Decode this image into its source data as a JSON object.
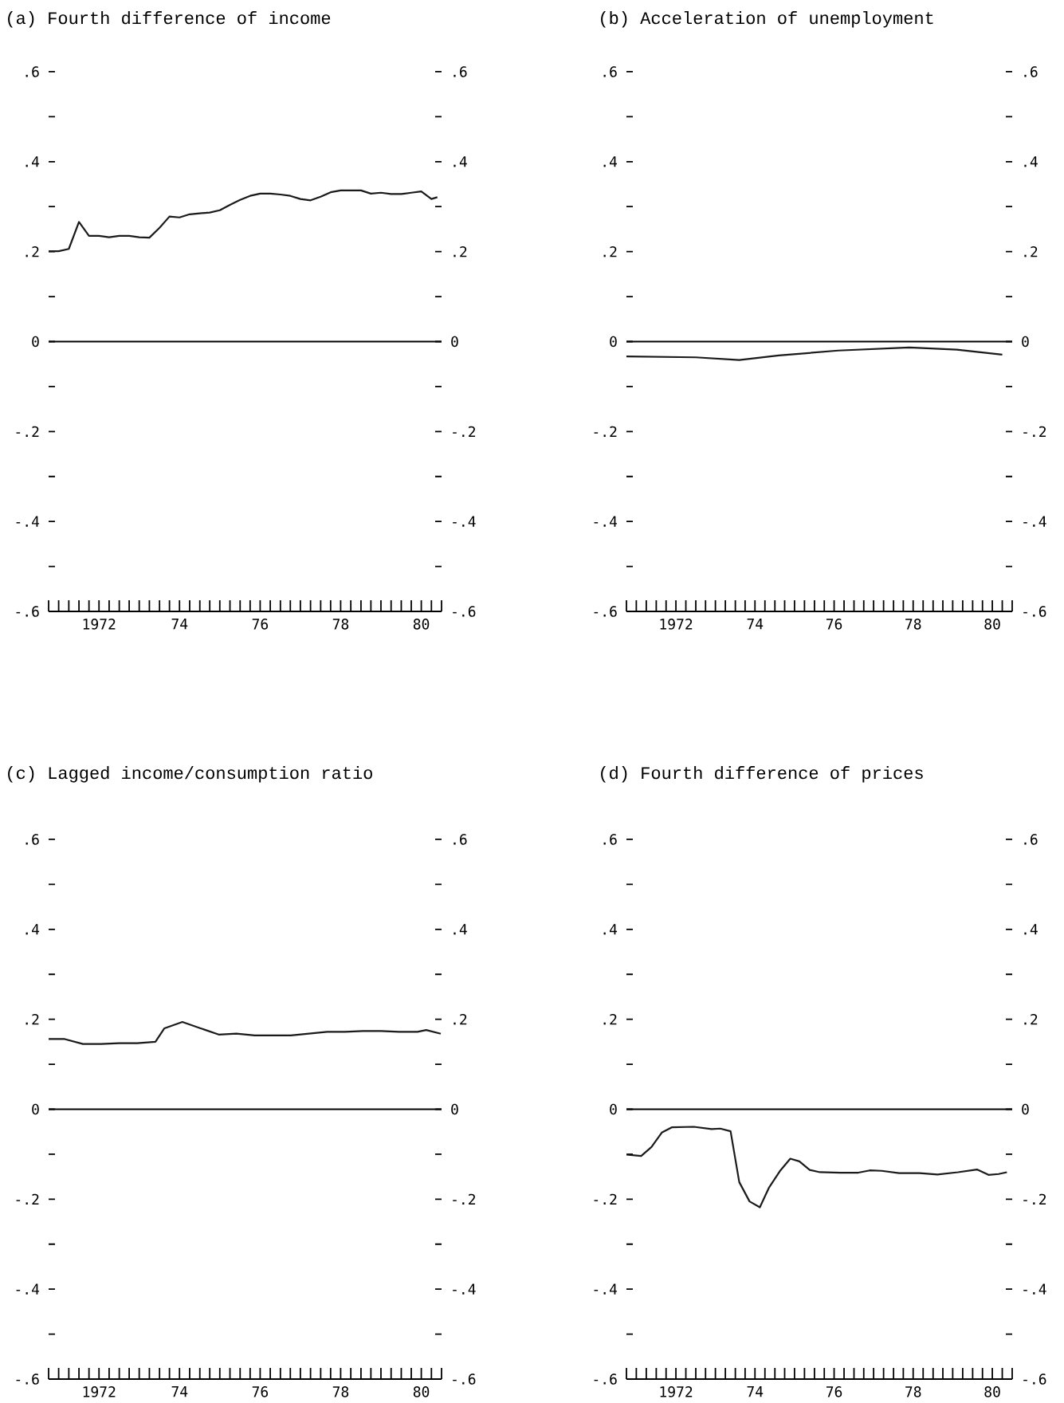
{
  "chart_data": [
    {
      "type": "line",
      "title": "(a) Fourth difference of income",
      "color": "#1a1a1a",
      "x": [
        "1971-04",
        "1971-07",
        "1971-10",
        "1972-01",
        "1972-04",
        "1972-07",
        "1972-10",
        "1973-01",
        "1973-04",
        "1973-07",
        "1973-10",
        "1974-01",
        "1974-04",
        "1974-07",
        "1974-10",
        "1975-01",
        "1975-04",
        "1975-07",
        "1975-10",
        "1976-01",
        "1976-04",
        "1976-07",
        "1976-10",
        "1977-01",
        "1977-04",
        "1977-07",
        "1977-10",
        "1978-01",
        "1978-04",
        "1978-07",
        "1978-10",
        "1979-01",
        "1979-04",
        "1979-07",
        "1979-10",
        "1980-01",
        "1980-04",
        "1980-07",
        "1980-10",
        "1980-11-24"
      ],
      "values": [
        0.201,
        0.201,
        0.206,
        0.266,
        0.235,
        0.235,
        0.232,
        0.235,
        0.235,
        0.232,
        0.231,
        0.253,
        0.278,
        0.276,
        0.283,
        0.285,
        0.287,
        0.292,
        0.304,
        0.315,
        0.324,
        0.329,
        0.329,
        0.327,
        0.324,
        0.317,
        0.314,
        0.322,
        0.332,
        0.336,
        0.336,
        0.336,
        0.329,
        0.331,
        0.328,
        0.328,
        0.331,
        0.334,
        0.317,
        0.321
      ],
      "xlim": [
        "1971-04",
        "1981-01"
      ],
      "xticks": [
        {
          "value": "1971-04",
          "label": null
        },
        {
          "value": "1971-07",
          "label": null
        },
        {
          "value": "1971-10",
          "label": null
        },
        {
          "value": "1972-01",
          "label": null
        },
        {
          "value": "1972-04",
          "label": null
        },
        {
          "value": "1972-07",
          "label": "1972"
        },
        {
          "value": "1972-10",
          "label": null
        },
        {
          "value": "1973-01",
          "label": null
        },
        {
          "value": "1973-04",
          "label": null
        },
        {
          "value": "1973-07",
          "label": null
        },
        {
          "value": "1973-10",
          "label": null
        },
        {
          "value": "1974-01",
          "label": null
        },
        {
          "value": "1974-04",
          "label": null
        },
        {
          "value": "1974-07",
          "label": "74"
        },
        {
          "value": "1974-10",
          "label": null
        },
        {
          "value": "1975-01",
          "label": null
        },
        {
          "value": "1975-04",
          "label": null
        },
        {
          "value": "1975-07",
          "label": null
        },
        {
          "value": "1975-10",
          "label": null
        },
        {
          "value": "1976-01",
          "label": null
        },
        {
          "value": "1976-04",
          "label": null
        },
        {
          "value": "1976-07",
          "label": "76"
        },
        {
          "value": "1976-10",
          "label": null
        },
        {
          "value": "1977-01",
          "label": null
        },
        {
          "value": "1977-04",
          "label": null
        },
        {
          "value": "1977-07",
          "label": null
        },
        {
          "value": "1977-10",
          "label": null
        },
        {
          "value": "1978-01",
          "label": null
        },
        {
          "value": "1978-04",
          "label": null
        },
        {
          "value": "1978-07",
          "label": "78"
        },
        {
          "value": "1978-10",
          "label": null
        },
        {
          "value": "1979-01",
          "label": null
        },
        {
          "value": "1979-04",
          "label": null
        },
        {
          "value": "1979-07",
          "label": null
        },
        {
          "value": "1979-10",
          "label": null
        },
        {
          "value": "1980-01",
          "label": null
        },
        {
          "value": "1980-04",
          "label": null
        },
        {
          "value": "1980-07",
          "label": "80"
        },
        {
          "value": "1980-10",
          "label": null
        },
        {
          "value": "1981-01",
          "label": null
        }
      ],
      "ylim": [
        -0.6,
        0.6
      ],
      "yticks": [
        {
          "value": -0.6,
          "label": "-.6"
        },
        {
          "value": -0.5,
          "label": null
        },
        {
          "value": -0.4,
          "label": "-.4"
        },
        {
          "value": -0.3,
          "label": null
        },
        {
          "value": -0.2,
          "label": "-.2"
        },
        {
          "value": -0.1,
          "label": null
        },
        0,
        {
          "value": 0.1,
          "label": null
        },
        {
          "value": 0.2,
          "label": ".2"
        },
        {
          "value": 0.3,
          "label": null
        },
        {
          "value": 0.4,
          "label": ".4"
        },
        {
          "value": 0.5,
          "label": null
        },
        {
          "value": 0.6,
          "label": ".6"
        }
      ],
      "y2lim": [
        -0.6,
        0.6
      ],
      "y2ticks": [
        {
          "value": -0.6,
          "label": "-.6"
        },
        {
          "value": -0.5,
          "label": null
        },
        {
          "value": -0.4,
          "label": "-.4"
        },
        {
          "value": -0.3,
          "label": null
        },
        {
          "value": -0.2,
          "label": "-.2"
        },
        {
          "value": -0.1,
          "label": null
        },
        0,
        {
          "value": 0.1,
          "label": null
        },
        {
          "value": 0.2,
          "label": ".2"
        },
        {
          "value": 0.3,
          "label": null
        },
        {
          "value": 0.4,
          "label": ".4"
        },
        {
          "value": 0.5,
          "label": null
        },
        {
          "value": 0.6,
          "label": ".6"
        }
      ],
      "ref_lines": [
        {
          "axis": "y",
          "value": 0
        }
      ]
    },
    {
      "type": "line",
      "title": "(b) Acceleration of unemployment",
      "color": "#1a1a1a",
      "x": [
        "1971-04",
        "1973-01",
        "1974-02-06",
        "1975-02-06",
        "1976-08-07",
        "1978-05-27",
        "1979-08-08",
        "1980-10"
      ],
      "values": [
        -0.033,
        -0.035,
        -0.041,
        -0.031,
        -0.02,
        -0.013,
        -0.018,
        -0.029
      ],
      "xlim": [
        "1971-04",
        "1981-01"
      ],
      "xticks": [
        {
          "value": "1971-04",
          "label": null
        },
        {
          "value": "1971-07",
          "label": null
        },
        {
          "value": "1971-10",
          "label": null
        },
        {
          "value": "1972-01",
          "label": null
        },
        {
          "value": "1972-04",
          "label": null
        },
        {
          "value": "1972-07",
          "label": "1972"
        },
        {
          "value": "1972-10",
          "label": null
        },
        {
          "value": "1973-01",
          "label": null
        },
        {
          "value": "1973-04",
          "label": null
        },
        {
          "value": "1973-07",
          "label": null
        },
        {
          "value": "1973-10",
          "label": null
        },
        {
          "value": "1974-01",
          "label": null
        },
        {
          "value": "1974-04",
          "label": null
        },
        {
          "value": "1974-07",
          "label": "74"
        },
        {
          "value": "1974-10",
          "label": null
        },
        {
          "value": "1975-01",
          "label": null
        },
        {
          "value": "1975-04",
          "label": null
        },
        {
          "value": "1975-07",
          "label": null
        },
        {
          "value": "1975-10",
          "label": null
        },
        {
          "value": "1976-01",
          "label": null
        },
        {
          "value": "1976-04",
          "label": null
        },
        {
          "value": "1976-07",
          "label": "76"
        },
        {
          "value": "1976-10",
          "label": null
        },
        {
          "value": "1977-01",
          "label": null
        },
        {
          "value": "1977-04",
          "label": null
        },
        {
          "value": "1977-07",
          "label": null
        },
        {
          "value": "1977-10",
          "label": null
        },
        {
          "value": "1978-01",
          "label": null
        },
        {
          "value": "1978-04",
          "label": null
        },
        {
          "value": "1978-07",
          "label": "78"
        },
        {
          "value": "1978-10",
          "label": null
        },
        {
          "value": "1979-01",
          "label": null
        },
        {
          "value": "1979-04",
          "label": null
        },
        {
          "value": "1979-07",
          "label": null
        },
        {
          "value": "1979-10",
          "label": null
        },
        {
          "value": "1980-01",
          "label": null
        },
        {
          "value": "1980-04",
          "label": null
        },
        {
          "value": "1980-07",
          "label": "80"
        },
        {
          "value": "1980-10",
          "label": null
        },
        {
          "value": "1981-01",
          "label": null
        }
      ],
      "ylim": [
        -0.6,
        0.6
      ],
      "yticks": [
        {
          "value": -0.6,
          "label": "-.6"
        },
        {
          "value": -0.5,
          "label": null
        },
        {
          "value": -0.4,
          "label": "-.4"
        },
        {
          "value": -0.3,
          "label": null
        },
        {
          "value": -0.2,
          "label": "-.2"
        },
        {
          "value": -0.1,
          "label": null
        },
        0,
        {
          "value": 0.1,
          "label": null
        },
        {
          "value": 0.2,
          "label": ".2"
        },
        {
          "value": 0.3,
          "label": null
        },
        {
          "value": 0.4,
          "label": ".4"
        },
        {
          "value": 0.5,
          "label": null
        },
        {
          "value": 0.6,
          "label": ".6"
        }
      ],
      "y2lim": [
        -0.6,
        0.6
      ],
      "y2ticks": [
        {
          "value": -0.6,
          "label": "-.6"
        },
        {
          "value": -0.5,
          "label": null
        },
        {
          "value": -0.4,
          "label": "-.4"
        },
        {
          "value": -0.3,
          "label": null
        },
        {
          "value": -0.2,
          "label": "-.2"
        },
        {
          "value": -0.1,
          "label": null
        },
        0,
        {
          "value": 0.1,
          "label": null
        },
        {
          "value": 0.2,
          "label": ".2"
        },
        {
          "value": 0.3,
          "label": null
        },
        {
          "value": 0.4,
          "label": ".4"
        },
        {
          "value": 0.5,
          "label": null
        },
        {
          "value": 0.6,
          "label": ".6"
        }
      ],
      "ref_lines": [
        {
          "axis": "y",
          "value": 0
        }
      ]
    },
    {
      "type": "line",
      "title": "(c) Lagged income/consumption ratio",
      "color": "#1a1a1a",
      "x": [
        "1971-04",
        "1971-08-25",
        "1972-02-06",
        "1972-07-20",
        "1973-01",
        "1973-06-14",
        "1973-11-25",
        "1974-02-14",
        "1974-07-27",
        "1975-01-08",
        "1975-06-21",
        "1975-11-28",
        "1976-05-12",
        "1976-10-23",
        "1977-04-06",
        "1977-09-17",
        "1978-03-01",
        "1978-08-08",
        "1979-01-19",
        "1979-07-02",
        "1979-12-13",
        "1980-05-27",
        "1980-08-15",
        "1980-12-25"
      ],
      "values": [
        0.156,
        0.156,
        0.145,
        0.145,
        0.147,
        0.147,
        0.15,
        0.18,
        0.194,
        0.18,
        0.166,
        0.168,
        0.164,
        0.164,
        0.164,
        0.168,
        0.172,
        0.172,
        0.174,
        0.174,
        0.172,
        0.172,
        0.176,
        0.168
      ],
      "xlim": [
        "1971-04",
        "1981-01"
      ],
      "xticks": [
        {
          "value": "1971-04",
          "label": null
        },
        {
          "value": "1971-07",
          "label": null
        },
        {
          "value": "1971-10",
          "label": null
        },
        {
          "value": "1972-01",
          "label": null
        },
        {
          "value": "1972-04",
          "label": null
        },
        {
          "value": "1972-07",
          "label": "1972"
        },
        {
          "value": "1972-10",
          "label": null
        },
        {
          "value": "1973-01",
          "label": null
        },
        {
          "value": "1973-04",
          "label": null
        },
        {
          "value": "1973-07",
          "label": null
        },
        {
          "value": "1973-10",
          "label": null
        },
        {
          "value": "1974-01",
          "label": null
        },
        {
          "value": "1974-04",
          "label": null
        },
        {
          "value": "1974-07",
          "label": "74"
        },
        {
          "value": "1974-10",
          "label": null
        },
        {
          "value": "1975-01",
          "label": null
        },
        {
          "value": "1975-04",
          "label": null
        },
        {
          "value": "1975-07",
          "label": null
        },
        {
          "value": "1975-10",
          "label": null
        },
        {
          "value": "1976-01",
          "label": null
        },
        {
          "value": "1976-04",
          "label": null
        },
        {
          "value": "1976-07",
          "label": "76"
        },
        {
          "value": "1976-10",
          "label": null
        },
        {
          "value": "1977-01",
          "label": null
        },
        {
          "value": "1977-04",
          "label": null
        },
        {
          "value": "1977-07",
          "label": null
        },
        {
          "value": "1977-10",
          "label": null
        },
        {
          "value": "1978-01",
          "label": null
        },
        {
          "value": "1978-04",
          "label": null
        },
        {
          "value": "1978-07",
          "label": "78"
        },
        {
          "value": "1978-10",
          "label": null
        },
        {
          "value": "1979-01",
          "label": null
        },
        {
          "value": "1979-04",
          "label": null
        },
        {
          "value": "1979-07",
          "label": null
        },
        {
          "value": "1979-10",
          "label": null
        },
        {
          "value": "1980-01",
          "label": null
        },
        {
          "value": "1980-04",
          "label": null
        },
        {
          "value": "1980-07",
          "label": "80"
        },
        {
          "value": "1980-10",
          "label": null
        },
        {
          "value": "1981-01",
          "label": null
        }
      ],
      "ylim": [
        -0.6,
        0.6
      ],
      "yticks": [
        {
          "value": -0.6,
          "label": "-.6"
        },
        {
          "value": -0.5,
          "label": null
        },
        {
          "value": -0.4,
          "label": "-.4"
        },
        {
          "value": -0.3,
          "label": null
        },
        {
          "value": -0.2,
          "label": "-.2"
        },
        {
          "value": -0.1,
          "label": null
        },
        0,
        {
          "value": 0.1,
          "label": null
        },
        {
          "value": 0.2,
          "label": ".2"
        },
        {
          "value": 0.3,
          "label": null
        },
        {
          "value": 0.4,
          "label": ".4"
        },
        {
          "value": 0.5,
          "label": null
        },
        {
          "value": 0.6,
          "label": ".6"
        }
      ],
      "y2lim": [
        -0.6,
        0.6
      ],
      "y2ticks": [
        {
          "value": -0.6,
          "label": "-.6"
        },
        {
          "value": -0.5,
          "label": null
        },
        {
          "value": -0.4,
          "label": "-.4"
        },
        {
          "value": -0.3,
          "label": null
        },
        {
          "value": -0.2,
          "label": "-.2"
        },
        {
          "value": -0.1,
          "label": null
        },
        0,
        {
          "value": 0.1,
          "label": null
        },
        {
          "value": 0.2,
          "label": ".2"
        },
        {
          "value": 0.3,
          "label": null
        },
        {
          "value": 0.4,
          "label": ".4"
        },
        {
          "value": 0.5,
          "label": null
        },
        {
          "value": 0.6,
          "label": ".6"
        }
      ],
      "ref_lines": [
        {
          "axis": "y",
          "value": 0
        }
      ]
    },
    {
      "type": "line",
      "title": "(d) Fourth difference of prices",
      "color": "#1a1a1a",
      "x": [
        "1971-04",
        "1971-08-15",
        "1971-11-18",
        "1972-02-21",
        "1972-05-27",
        "1972-12-13",
        "1973-05-27",
        "1973-08-15",
        "1973-11-18",
        "1974-02-06",
        "1974-05-12",
        "1974-08-15",
        "1974-11-06",
        "1975-02-21",
        "1975-05-23",
        "1975-08-15",
        "1975-11-18",
        "1976-02-21",
        "1976-08-29",
        "1977-02-10",
        "1977-05-27",
        "1977-09-13",
        "1978-02-21",
        "1978-08-29",
        "1979-02-10",
        "1979-08-19",
        "1980-02-10",
        "1980-05-27",
        "1980-08-29",
        "1980-11-13"
      ],
      "values": [
        -0.101,
        -0.104,
        -0.084,
        -0.052,
        -0.04,
        -0.039,
        -0.044,
        -0.043,
        -0.049,
        -0.162,
        -0.205,
        -0.218,
        -0.175,
        -0.136,
        -0.11,
        -0.116,
        -0.135,
        -0.14,
        -0.141,
        -0.141,
        -0.136,
        -0.137,
        -0.142,
        -0.142,
        -0.145,
        -0.14,
        -0.134,
        -0.146,
        -0.144,
        -0.14
      ],
      "xlim": [
        "1971-04",
        "1981-01"
      ],
      "xticks": [
        {
          "value": "1971-04",
          "label": null
        },
        {
          "value": "1971-07",
          "label": null
        },
        {
          "value": "1971-10",
          "label": null
        },
        {
          "value": "1972-01",
          "label": null
        },
        {
          "value": "1972-04",
          "label": null
        },
        {
          "value": "1972-07",
          "label": "1972"
        },
        {
          "value": "1972-10",
          "label": null
        },
        {
          "value": "1973-01",
          "label": null
        },
        {
          "value": "1973-04",
          "label": null
        },
        {
          "value": "1973-07",
          "label": null
        },
        {
          "value": "1973-10",
          "label": null
        },
        {
          "value": "1974-01",
          "label": null
        },
        {
          "value": "1974-04",
          "label": null
        },
        {
          "value": "1974-07",
          "label": "74"
        },
        {
          "value": "1974-10",
          "label": null
        },
        {
          "value": "1975-01",
          "label": null
        },
        {
          "value": "1975-04",
          "label": null
        },
        {
          "value": "1975-07",
          "label": null
        },
        {
          "value": "1975-10",
          "label": null
        },
        {
          "value": "1976-01",
          "label": null
        },
        {
          "value": "1976-04",
          "label": null
        },
        {
          "value": "1976-07",
          "label": "76"
        },
        {
          "value": "1976-10",
          "label": null
        },
        {
          "value": "1977-01",
          "label": null
        },
        {
          "value": "1977-04",
          "label": null
        },
        {
          "value": "1977-07",
          "label": null
        },
        {
          "value": "1977-10",
          "label": null
        },
        {
          "value": "1978-01",
          "label": null
        },
        {
          "value": "1978-04",
          "label": null
        },
        {
          "value": "1978-07",
          "label": "78"
        },
        {
          "value": "1978-10",
          "label": null
        },
        {
          "value": "1979-01",
          "label": null
        },
        {
          "value": "1979-04",
          "label": null
        },
        {
          "value": "1979-07",
          "label": null
        },
        {
          "value": "1979-10",
          "label": null
        },
        {
          "value": "1980-01",
          "label": null
        },
        {
          "value": "1980-04",
          "label": null
        },
        {
          "value": "1980-07",
          "label": "80"
        },
        {
          "value": "1980-10",
          "label": null
        },
        {
          "value": "1981-01",
          "label": null
        }
      ],
      "ylim": [
        -0.6,
        0.6
      ],
      "yticks": [
        {
          "value": -0.6,
          "label": "-.6"
        },
        {
          "value": -0.5,
          "label": null
        },
        {
          "value": -0.4,
          "label": "-.4"
        },
        {
          "value": -0.3,
          "label": null
        },
        {
          "value": -0.2,
          "label": "-.2"
        },
        {
          "value": -0.1,
          "label": null
        },
        0,
        {
          "value": 0.1,
          "label": null
        },
        {
          "value": 0.2,
          "label": ".2"
        },
        {
          "value": 0.3,
          "label": null
        },
        {
          "value": 0.4,
          "label": ".4"
        },
        {
          "value": 0.5,
          "label": null
        },
        {
          "value": 0.6,
          "label": ".6"
        }
      ],
      "y2lim": [
        -0.6,
        0.6
      ],
      "y2ticks": [
        {
          "value": -0.6,
          "label": "-.6"
        },
        {
          "value": -0.5,
          "label": null
        },
        {
          "value": -0.4,
          "label": "-.4"
        },
        {
          "value": -0.3,
          "label": null
        },
        {
          "value": -0.2,
          "label": "-.2"
        },
        {
          "value": -0.1,
          "label": null
        },
        0,
        {
          "value": 0.1,
          "label": null
        },
        {
          "value": 0.2,
          "label": ".2"
        },
        {
          "value": 0.3,
          "label": null
        },
        {
          "value": 0.4,
          "label": ".4"
        },
        {
          "value": 0.5,
          "label": null
        },
        {
          "value": 0.6,
          "label": ".6"
        }
      ],
      "ref_lines": [
        {
          "axis": "y",
          "value": 0
        }
      ]
    }
  ]
}
